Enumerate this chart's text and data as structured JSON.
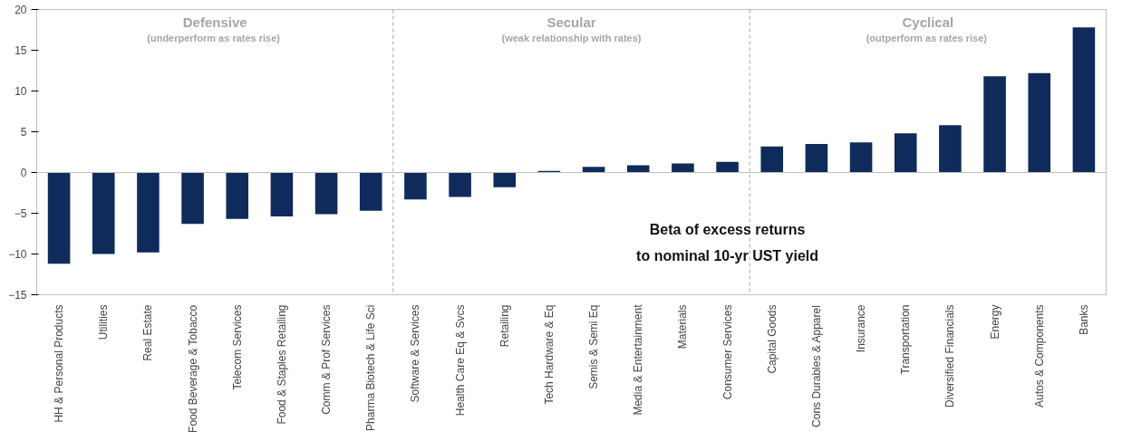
{
  "chart_data": {
    "type": "bar",
    "categories": [
      "HH & Personal Products",
      "Utilities",
      "Real Estate",
      "Food Beverage & Tobacco",
      "Telecom Services",
      "Food & Staples Retailing",
      "Comm & Prof Services",
      "Pharma Biotech & Life Sci",
      "Software & Services",
      "Health Care Eq & Svcs",
      "Retailing",
      "Tech Hardware & Eq",
      "Semis & Semi Eq",
      "Media & Entertainment",
      "Materials",
      "Consumer Services",
      "Capital Goods",
      "Cons Durables & Apparel",
      "Insurance",
      "Transportation",
      "Diversified Financials",
      "Energy",
      "Autos & Components",
      "Banks"
    ],
    "values": [
      -11.2,
      -10.0,
      -9.8,
      -6.3,
      -5.7,
      -5.4,
      -5.1,
      -4.7,
      -3.3,
      -3.0,
      -1.8,
      0.2,
      0.7,
      0.9,
      1.1,
      1.3,
      3.2,
      3.5,
      3.7,
      4.8,
      5.8,
      11.8,
      12.2,
      17.8
    ],
    "color": "#0f2b5b",
    "ylim": [
      -15,
      20
    ],
    "yticks": [
      -15,
      -10,
      -5,
      0,
      5,
      10,
      15,
      20
    ],
    "grid": false,
    "annotations": [
      "Defensive\n(underperform  as rates rise)",
      "Secular\n(weak relationship with rates)",
      "Cyclical\n(outperform  as rates rise)",
      "Beta of excess returns\nto nominal 10-yr UST yield"
    ]
  }
}
